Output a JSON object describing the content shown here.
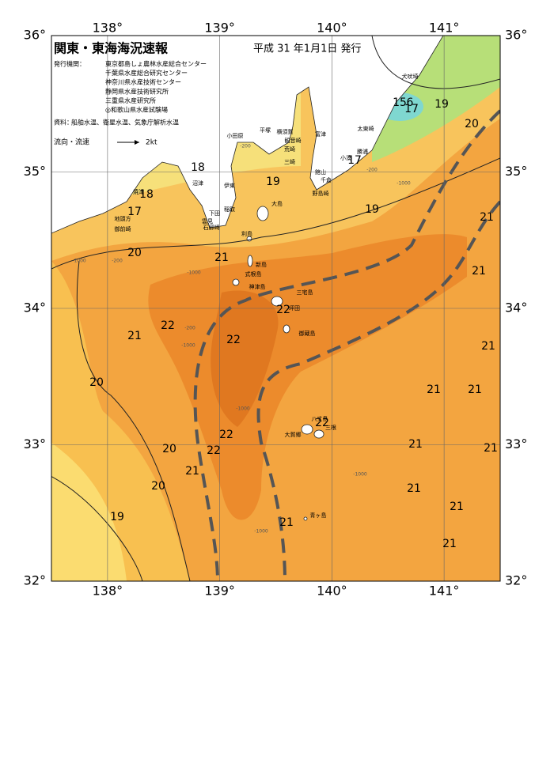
{
  "header": {
    "title": "関東・東海海況速報",
    "issue_date": "平成 31 年1月1日 発行"
  },
  "agencies": {
    "label": "発行機関：",
    "list": [
      "東京都島しょ農林水産総合センター",
      "千葉県水産総合研究センター",
      "神奈川県水産技術センター",
      "静岡県水産技術研究所",
      "三重県水産研究所",
      "◎和歌山県水産試験場"
    ]
  },
  "sources": {
    "label": "資料：",
    "text": "船舶水温、衛星水温、気象庁解析水温"
  },
  "current_legend": {
    "label": "流向・流速",
    "speed": "2kt"
  },
  "map": {
    "xlim": [
      137.5,
      141.5
    ],
    "ylim": [
      32,
      36
    ],
    "xticks": [
      {
        "value": 138,
        "label": "138°"
      },
      {
        "value": 139,
        "label": "139°"
      },
      {
        "value": 140,
        "label": "140°"
      },
      {
        "value": 141,
        "label": "141°"
      }
    ],
    "yticks": [
      {
        "value": 36,
        "label": "36°"
      },
      {
        "value": 35,
        "label": "35°"
      },
      {
        "value": 34,
        "label": "34°"
      },
      {
        "value": 33,
        "label": "33°"
      },
      {
        "value": 32,
        "label": "32°"
      }
    ]
  },
  "place_names": [
    "犬吠埼",
    "太東崎",
    "勝浦",
    "小湊",
    "館山",
    "千倉",
    "野島崎",
    "富津",
    "観音崎",
    "荒崎",
    "三崎",
    "横須賀",
    "平塚",
    "小田原",
    "伊東",
    "大島",
    "稲取",
    "下田",
    "雲見",
    "石廊崎",
    "沼津",
    "焼津",
    "地頭方",
    "御前崎",
    "利島",
    "新島",
    "式根島",
    "神津島",
    "三宅島",
    "坪田",
    "御蔵島",
    "八丈島",
    "三根",
    "大賀郷",
    "青ヶ島"
  ],
  "temperature_labels": [
    15,
    6,
    17,
    19,
    20,
    17,
    19,
    18,
    18,
    17,
    19,
    21,
    21,
    20,
    21,
    22,
    21,
    22,
    22,
    21,
    20,
    21,
    21,
    22,
    22,
    20,
    22,
    21,
    21,
    21,
    20,
    21,
    21,
    19,
    21,
    21
  ],
  "depth_labels": [
    "-1000",
    "-200",
    "-1000",
    "-1000",
    "-1000",
    "-1000",
    "-200",
    "-1000",
    "-200",
    "-1000",
    "-200"
  ]
}
